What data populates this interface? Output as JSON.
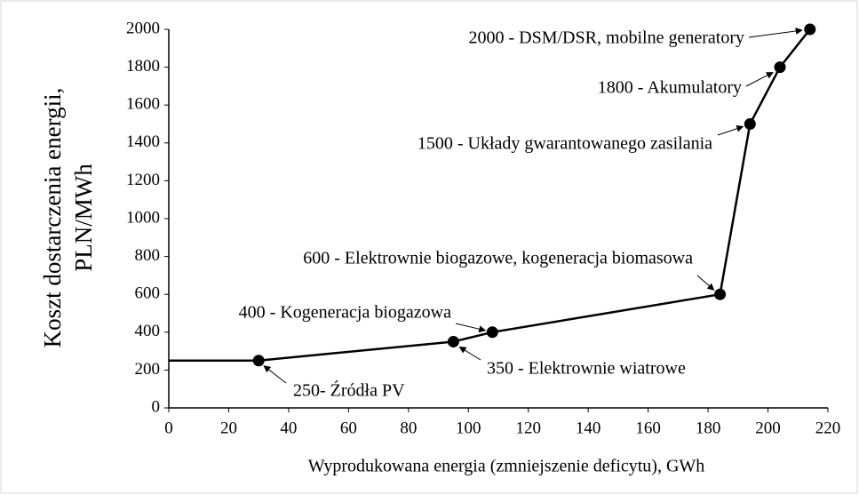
{
  "chart_data": {
    "type": "line",
    "xlabel": "Wyprodukowana energia (zmniejszenie deficytu), GWh",
    "ylabel": [
      "Koszt dostarczenia energii,",
      "PLN/MWh"
    ],
    "x": [
      0,
      30,
      95,
      108,
      184,
      194,
      204,
      214
    ],
    "series": [
      {
        "color": "#000000",
        "values": [
          250,
          250,
          350,
          400,
          600,
          1500,
          1800,
          2000
        ],
        "markers": [
          false,
          true,
          true,
          true,
          true,
          true,
          true,
          true
        ]
      }
    ],
    "xlim": [
      0,
      220
    ],
    "xticks": [
      0,
      20,
      40,
      60,
      80,
      100,
      120,
      140,
      160,
      180,
      200,
      220
    ],
    "ylim": [
      0,
      2000
    ],
    "yticks": [
      0,
      200,
      400,
      600,
      800,
      1000,
      1200,
      1400,
      1600,
      1800,
      2000
    ],
    "grid": false,
    "annotations": [
      {
        "text": "2000 - DSM/DSR, mobilne generatory",
        "point": 7
      },
      {
        "text": "1800 - Akumulatory",
        "point": 6
      },
      {
        "text": "1500 - Układy gwarantowanego zasilania",
        "point": 5
      },
      {
        "text": "600 - Elektrownie biogazowe, kogeneracja biomasowa",
        "point": 4
      },
      {
        "text": "400 - Kogeneracja biogazowa",
        "point": 3
      },
      {
        "text": "350 - Elektrownie wiatrowe",
        "point": 2
      },
      {
        "text": "250- Źródła PV",
        "point": 1
      }
    ]
  }
}
